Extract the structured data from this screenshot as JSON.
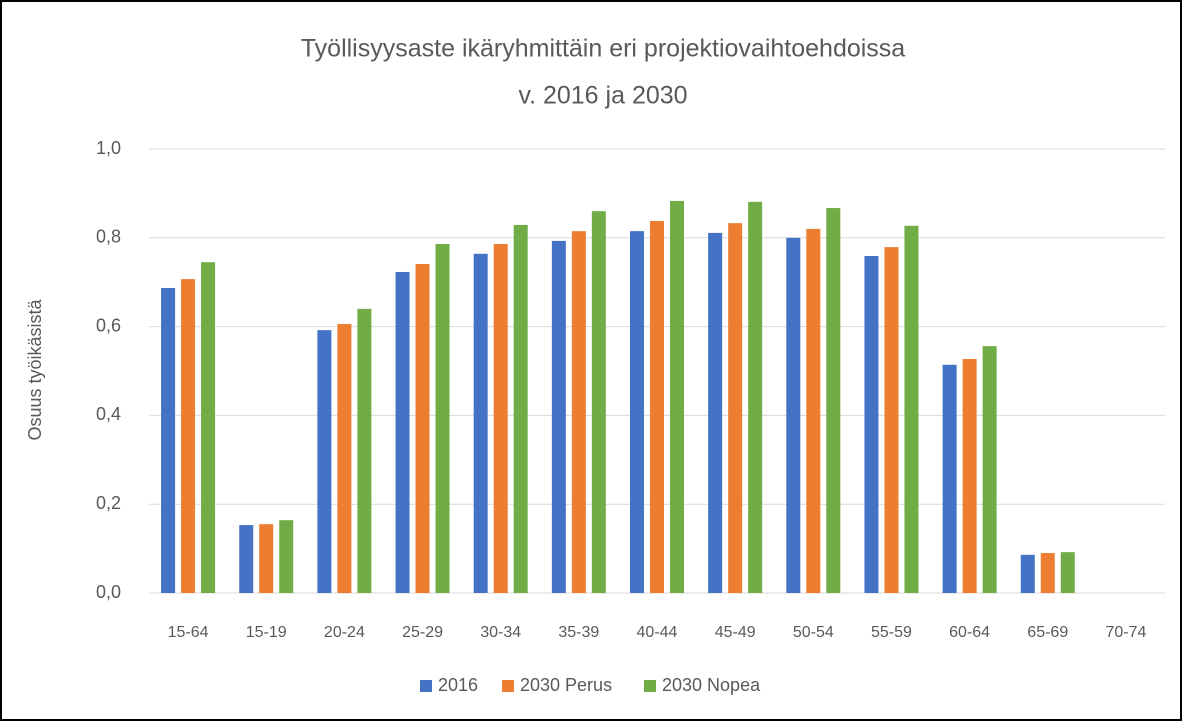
{
  "chart_data": {
    "type": "bar",
    "title": [
      "Työllisyysaste ikäryhmittäin eri projektiovaihtoehdoissa",
      "v. 2016 ja 2030"
    ],
    "y_label": "Osuus työikäsistä",
    "categories": [
      "15-64",
      "15-19",
      "20-24",
      "25-29",
      "30-34",
      "35-39",
      "40-44",
      "45-49",
      "50-54",
      "55-59",
      "60-64",
      "65-69",
      "70-74"
    ],
    "series": [
      {
        "name": "2016",
        "color": "#4472c4",
        "values": [
          0.687,
          0.153,
          0.592,
          0.723,
          0.764,
          0.793,
          0.815,
          0.811,
          0.8,
          0.759,
          0.514,
          0.086,
          null
        ]
      },
      {
        "name": "2030 Perus",
        "color": "#ed7d31",
        "values": [
          0.707,
          0.155,
          0.606,
          0.741,
          0.786,
          0.815,
          0.838,
          0.833,
          0.82,
          0.779,
          0.527,
          0.09,
          null
        ]
      },
      {
        "name": "2030 Nopea",
        "color": "#70ad47",
        "values": [
          0.745,
          0.164,
          0.64,
          0.786,
          0.829,
          0.86,
          0.883,
          0.881,
          0.867,
          0.827,
          0.556,
          0.092,
          null
        ]
      }
    ],
    "ylim": [
      0,
      1
    ],
    "yticks": [
      {
        "value": 0,
        "label": "0,0"
      },
      {
        "value": 0.2,
        "label": "0,2"
      },
      {
        "value": 0.4,
        "label": "0,4"
      },
      {
        "value": 0.6,
        "label": "0,6"
      },
      {
        "value": 0.8,
        "label": "0,8"
      },
      {
        "value": 1,
        "label": "1,0"
      }
    ],
    "grid": true,
    "legend": "bottom"
  }
}
